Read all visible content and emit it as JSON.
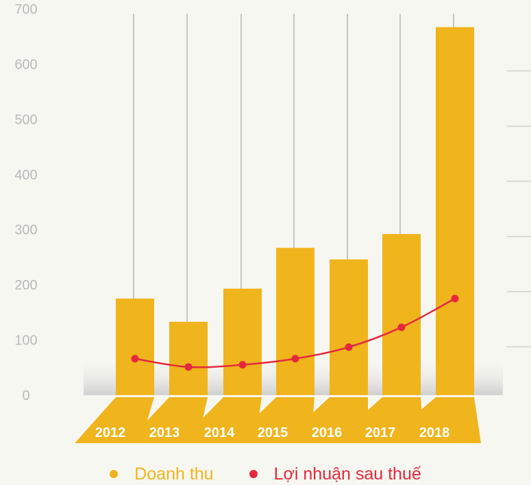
{
  "chart_data": {
    "type": "bar",
    "categories": [
      "2012",
      "2013",
      "2014",
      "2015",
      "2016",
      "2017",
      "2018"
    ],
    "series": [
      {
        "name": "Doanh thu",
        "type": "bar",
        "color": "#f0b41c",
        "values": [
          175,
          133,
          193,
          267,
          246,
          292,
          667
        ]
      },
      {
        "name": "Lợi nhuận sau thuế",
        "type": "line",
        "color": "#e5283c",
        "values": [
          66,
          51,
          55,
          66,
          87,
          123,
          175
        ]
      }
    ],
    "yticks": [
      0,
      100,
      200,
      300,
      400,
      500,
      600,
      700
    ],
    "ylim": [
      0,
      700
    ],
    "legend_position": "bottom",
    "colors": {
      "bar": "#f0b41c",
      "line": "#e5283c",
      "axis_text": "#b9b9b9",
      "background": "#f7f7f1"
    }
  }
}
